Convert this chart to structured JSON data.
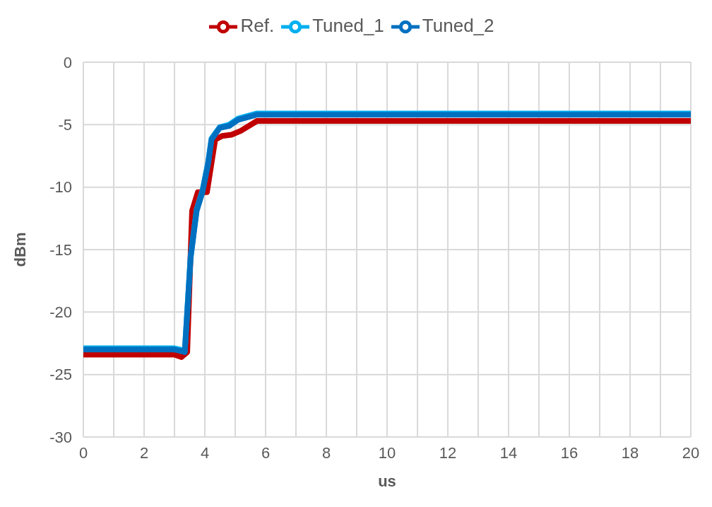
{
  "chart_data": {
    "type": "line",
    "xlabel": "us",
    "ylabel": "dBm",
    "xlim": [
      0,
      20
    ],
    "ylim": [
      -30,
      0
    ],
    "xticks": [
      0,
      {
        "value": 1,
        "label": null
      },
      2,
      {
        "value": 3,
        "label": null
      },
      4,
      {
        "value": 5,
        "label": null
      },
      6,
      {
        "value": 7,
        "label": null
      },
      8,
      {
        "value": 9,
        "label": null
      },
      10,
      {
        "value": 11,
        "label": null
      },
      12,
      {
        "value": 13,
        "label": null
      },
      14,
      {
        "value": 15,
        "label": null
      },
      16,
      {
        "value": 17,
        "label": null
      },
      18,
      {
        "value": 19,
        "label": null
      },
      20
    ],
    "yticks": [
      -30,
      -25,
      -20,
      -15,
      -10,
      -5,
      0
    ],
    "grid": true,
    "legend": "top",
    "marker": "none",
    "line_style": "solid",
    "series": [
      {
        "name": "Ref.",
        "color": "#c00000",
        "x": [
          0,
          1,
          2,
          3,
          3.23,
          3.42,
          3.58,
          3.77,
          4.07,
          4.34,
          4.57,
          4.88,
          5.18,
          5.72,
          8,
          12,
          16,
          20
        ],
        "values": [
          -23.4,
          -23.4,
          -23.4,
          -23.4,
          -23.6,
          -23.2,
          -11.9,
          -10.4,
          -10.4,
          -6.2,
          -5.9,
          -5.8,
          -5.5,
          -4.7,
          -4.7,
          -4.7,
          -4.7,
          -4.7
        ]
      },
      {
        "name": "Tuned_1",
        "color": "#00b0f0",
        "x": [
          0,
          1,
          2,
          3,
          3.19,
          3.34,
          3.53,
          3.73,
          3.92,
          4.11,
          4.22,
          4.49,
          4.8,
          5.1,
          5.72,
          8,
          12,
          16,
          20
        ],
        "values": [
          -22.9,
          -22.9,
          -22.9,
          -22.9,
          -23.0,
          -23.1,
          -15.6,
          -11.8,
          -10.3,
          -8.0,
          -6.1,
          -5.2,
          -5.0,
          -4.5,
          -4.1,
          -4.1,
          -4.1,
          -4.1,
          -4.1
        ]
      },
      {
        "name": "Tuned_2",
        "color": "#0070c0",
        "x": [
          0,
          1,
          2,
          3,
          3.19,
          3.34,
          3.53,
          3.73,
          3.92,
          4.11,
          4.22,
          4.49,
          4.8,
          5.1,
          5.72,
          8,
          12,
          16,
          20
        ],
        "values": [
          -23.0,
          -23.0,
          -23.0,
          -23.0,
          -23.1,
          -23.2,
          -15.7,
          -11.9,
          -10.4,
          -8.1,
          -6.2,
          -5.25,
          -5.1,
          -4.6,
          -4.2,
          -4.2,
          -4.2,
          -4.2,
          -4.2
        ]
      }
    ]
  }
}
